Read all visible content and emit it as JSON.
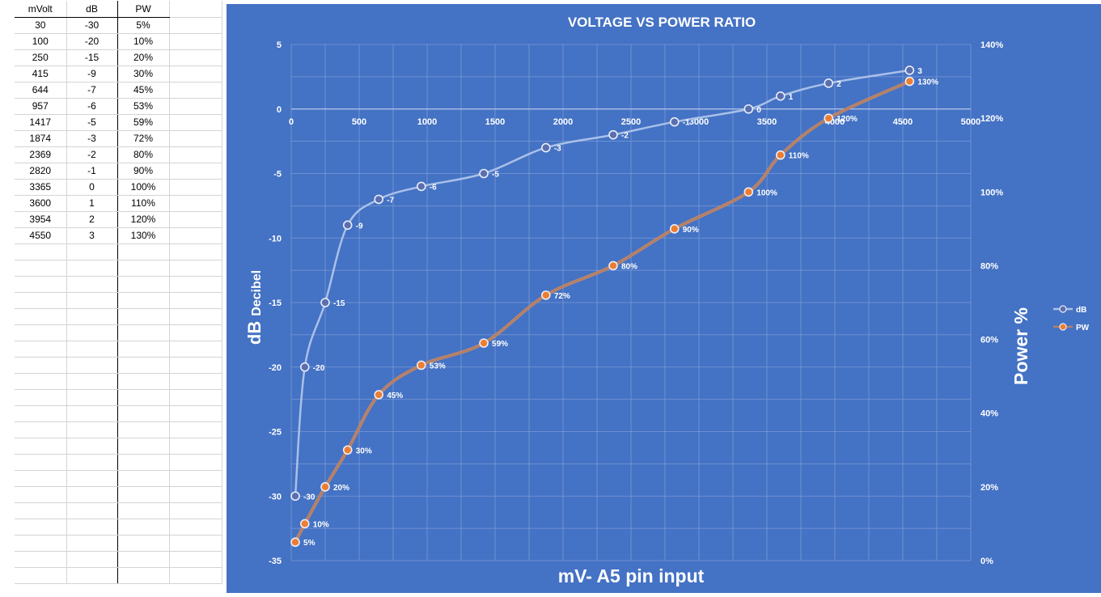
{
  "sheet": {
    "headers": [
      "mVolt",
      "dB",
      "PW"
    ],
    "rows": [
      [
        "30",
        "-30",
        "5%"
      ],
      [
        "100",
        "-20",
        "10%"
      ],
      [
        "250",
        "-15",
        "20%"
      ],
      [
        "415",
        "-9",
        "30%"
      ],
      [
        "644",
        "-7",
        "45%"
      ],
      [
        "957",
        "-6",
        "53%"
      ],
      [
        "1417",
        "-5",
        "59%"
      ],
      [
        "1874",
        "-3",
        "72%"
      ],
      [
        "2369",
        "-2",
        "80%"
      ],
      [
        "2820",
        "-1",
        "90%"
      ],
      [
        "3365",
        "0",
        "100%"
      ],
      [
        "3600",
        "1",
        "110%"
      ],
      [
        "3954",
        "2",
        "120%"
      ],
      [
        "4550",
        "3",
        "130%"
      ]
    ],
    "empty_rows": 21
  },
  "chart_data": {
    "type": "line",
    "title": "VOLTAGE VS POWER RATIO",
    "xlabel": "mV- A5 pin input",
    "ylabel": "dB",
    "ylabel_suffix": "Decibel",
    "y2label": "Power %",
    "xlim": [
      0,
      5000
    ],
    "ylim": [
      -35,
      5
    ],
    "y2lim": [
      0,
      140
    ],
    "x_ticks": [
      "0",
      "500",
      "1000",
      "1500",
      "2000",
      "2500",
      "3000",
      "3500",
      "4000",
      "4500",
      "5000"
    ],
    "y_ticks": [
      "5",
      "0",
      "-5",
      "-10",
      "-15",
      "-20",
      "-25",
      "-30",
      "-35"
    ],
    "y2_ticks": [
      "140%",
      "120%",
      "100%",
      "80%",
      "60%",
      "40%",
      "20%",
      "0%"
    ],
    "grid": true,
    "legend_position": "right",
    "background": "#4472c4",
    "x": [
      30,
      100,
      250,
      415,
      644,
      957,
      1417,
      1874,
      2369,
      2820,
      3365,
      3600,
      3954,
      4550
    ],
    "series": [
      {
        "name": "dB",
        "axis": "left",
        "values": [
          -30,
          -20,
          -15,
          -9,
          -7,
          -6,
          -5,
          -3,
          -2,
          -1,
          0,
          1,
          2,
          3
        ],
        "labels": [
          "-30",
          "-20",
          "-15",
          "-9",
          "-7",
          "-6",
          "-5",
          "-3",
          "-2",
          "-1",
          "0",
          "1",
          "2",
          "3"
        ],
        "line_color": "#a9c0e8",
        "marker_color": "#5b6fb0"
      },
      {
        "name": "PW",
        "axis": "right",
        "values": [
          5,
          10,
          20,
          30,
          45,
          53,
          59,
          72,
          80,
          90,
          100,
          110,
          120,
          130
        ],
        "labels": [
          "5%",
          "10%",
          "20%",
          "30%",
          "45%",
          "53%",
          "59%",
          "72%",
          "80%",
          "90%",
          "100%",
          "110%",
          "120%",
          "130%"
        ],
        "line_color": "#b0806a",
        "marker_color": "#ed7d31"
      }
    ]
  }
}
